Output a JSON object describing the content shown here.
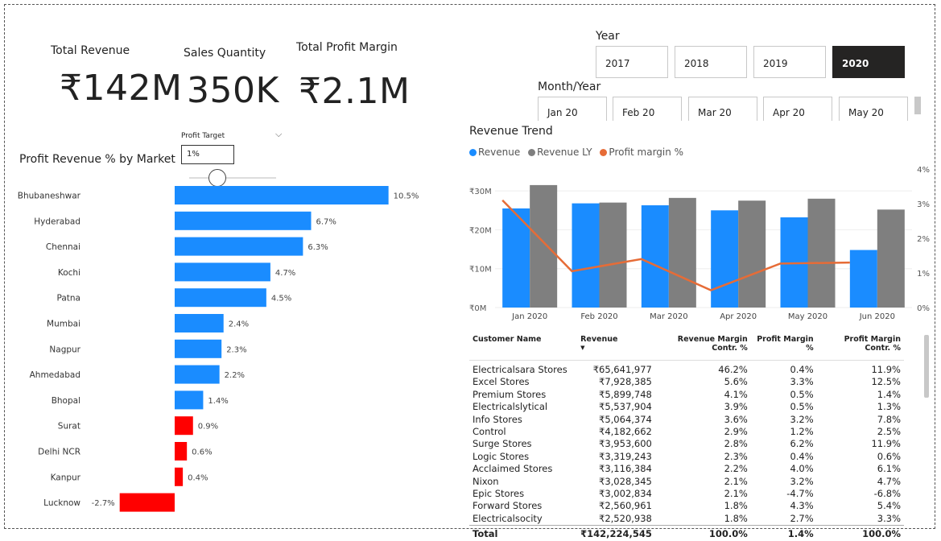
{
  "kpis": {
    "total_revenue": {
      "label": "Total Revenue",
      "value": "₹142M"
    },
    "sales_quantity": {
      "label": "Sales Quantity",
      "value": "350K"
    },
    "total_profit_margin": {
      "label": "Total Profit Margin",
      "value": "₹2.1M"
    }
  },
  "year_slicer": {
    "title": "Year",
    "options": [
      "2017",
      "2018",
      "2019",
      "2020"
    ],
    "selected": "2020"
  },
  "month_slicer": {
    "title": "Month/Year",
    "options": [
      "Jan 20",
      "Feb 20",
      "Mar 20",
      "Apr 20",
      "May 20"
    ]
  },
  "profit_target": {
    "label": "Profit Target",
    "value": "1%"
  },
  "colors": {
    "positive": "#1a8cff",
    "negative": "#ff0000",
    "revenue_ly": "#7f7f7f",
    "profit_line": "#e66c37",
    "selected_year_bg": "#252423"
  },
  "chart_data": [
    {
      "type": "bar",
      "title": "Profit Revenue % by Market",
      "orientation": "horizontal",
      "categories": [
        "Bhubaneshwar",
        "Hyderabad",
        "Chennai",
        "Kochi",
        "Patna",
        "Mumbai",
        "Nagpur",
        "Ahmedabad",
        "Bhopal",
        "Surat",
        "Delhi NCR",
        "Kanpur",
        "Lucknow"
      ],
      "values": [
        10.5,
        6.7,
        6.3,
        4.7,
        4.5,
        2.4,
        2.3,
        2.2,
        1.4,
        0.9,
        0.6,
        0.4,
        -2.7
      ],
      "labels": [
        "10.5%",
        "6.7%",
        "6.3%",
        "4.7%",
        "4.5%",
        "2.4%",
        "2.3%",
        "2.2%",
        "1.4%",
        "0.9%",
        "0.6%",
        "0.4%",
        "-2.7%"
      ],
      "threshold": 1
    },
    {
      "type": "bar",
      "title": "Revenue Trend",
      "categories": [
        "Jan 2020",
        "Feb 2020",
        "Mar 2020",
        "Apr 2020",
        "May 2020",
        "Jun 2020"
      ],
      "series": [
        {
          "name": "Revenue",
          "values": [
            25.5,
            26.8,
            26.3,
            25.0,
            23.2,
            14.8
          ]
        },
        {
          "name": "Revenue LY",
          "values": [
            31.5,
            27.0,
            28.2,
            27.5,
            28.0,
            25.2
          ]
        },
        {
          "name": "Profit margin %",
          "axis": "right",
          "values": [
            3.1,
            1.05,
            1.4,
            0.5,
            1.27,
            1.3
          ]
        }
      ],
      "y_ticks": [
        "₹0M",
        "₹10M",
        "₹20M",
        "₹30M"
      ],
      "ylim": [
        0,
        35
      ],
      "y2_ticks": [
        "0%",
        "1%",
        "2%",
        "3%",
        "4%"
      ],
      "y2lim": [
        0,
        4
      ],
      "legend_position": "top-left"
    }
  ],
  "table": {
    "headers": [
      "Customer Name",
      "Revenue",
      "Revenue Margin Contr. %",
      "Profit Margin %",
      "Profit Margin Contr. %"
    ],
    "rows": [
      [
        "Electricalsara Stores",
        "₹65,641,977",
        "46.2%",
        "0.4%",
        "11.9%"
      ],
      [
        "Excel Stores",
        "₹7,928,385",
        "5.6%",
        "3.3%",
        "12.5%"
      ],
      [
        "Premium Stores",
        "₹5,899,748",
        "4.1%",
        "0.5%",
        "1.4%"
      ],
      [
        "Electricalslytical",
        "₹5,537,904",
        "3.9%",
        "0.5%",
        "1.3%"
      ],
      [
        "Info Stores",
        "₹5,064,374",
        "3.6%",
        "3.2%",
        "7.8%"
      ],
      [
        "Control",
        "₹4,182,662",
        "2.9%",
        "1.2%",
        "2.5%"
      ],
      [
        "Surge Stores",
        "₹3,953,600",
        "2.8%",
        "6.2%",
        "11.9%"
      ],
      [
        "Logic Stores",
        "₹3,319,243",
        "2.3%",
        "0.4%",
        "0.6%"
      ],
      [
        "Acclaimed Stores",
        "₹3,116,384",
        "2.2%",
        "4.0%",
        "6.1%"
      ],
      [
        "Nixon",
        "₹3,028,345",
        "2.1%",
        "3.2%",
        "4.7%"
      ],
      [
        "Epic Stores",
        "₹3,002,834",
        "2.1%",
        "-4.7%",
        "-6.8%"
      ],
      [
        "Forward Stores",
        "₹2,560,961",
        "1.8%",
        "4.3%",
        "5.4%"
      ],
      [
        "Electricalsocity",
        "₹2,520,938",
        "1.8%",
        "2.7%",
        "3.3%"
      ]
    ],
    "total": [
      "Total",
      "₹142,224,545",
      "100.0%",
      "1.4%",
      "100.0%"
    ]
  }
}
